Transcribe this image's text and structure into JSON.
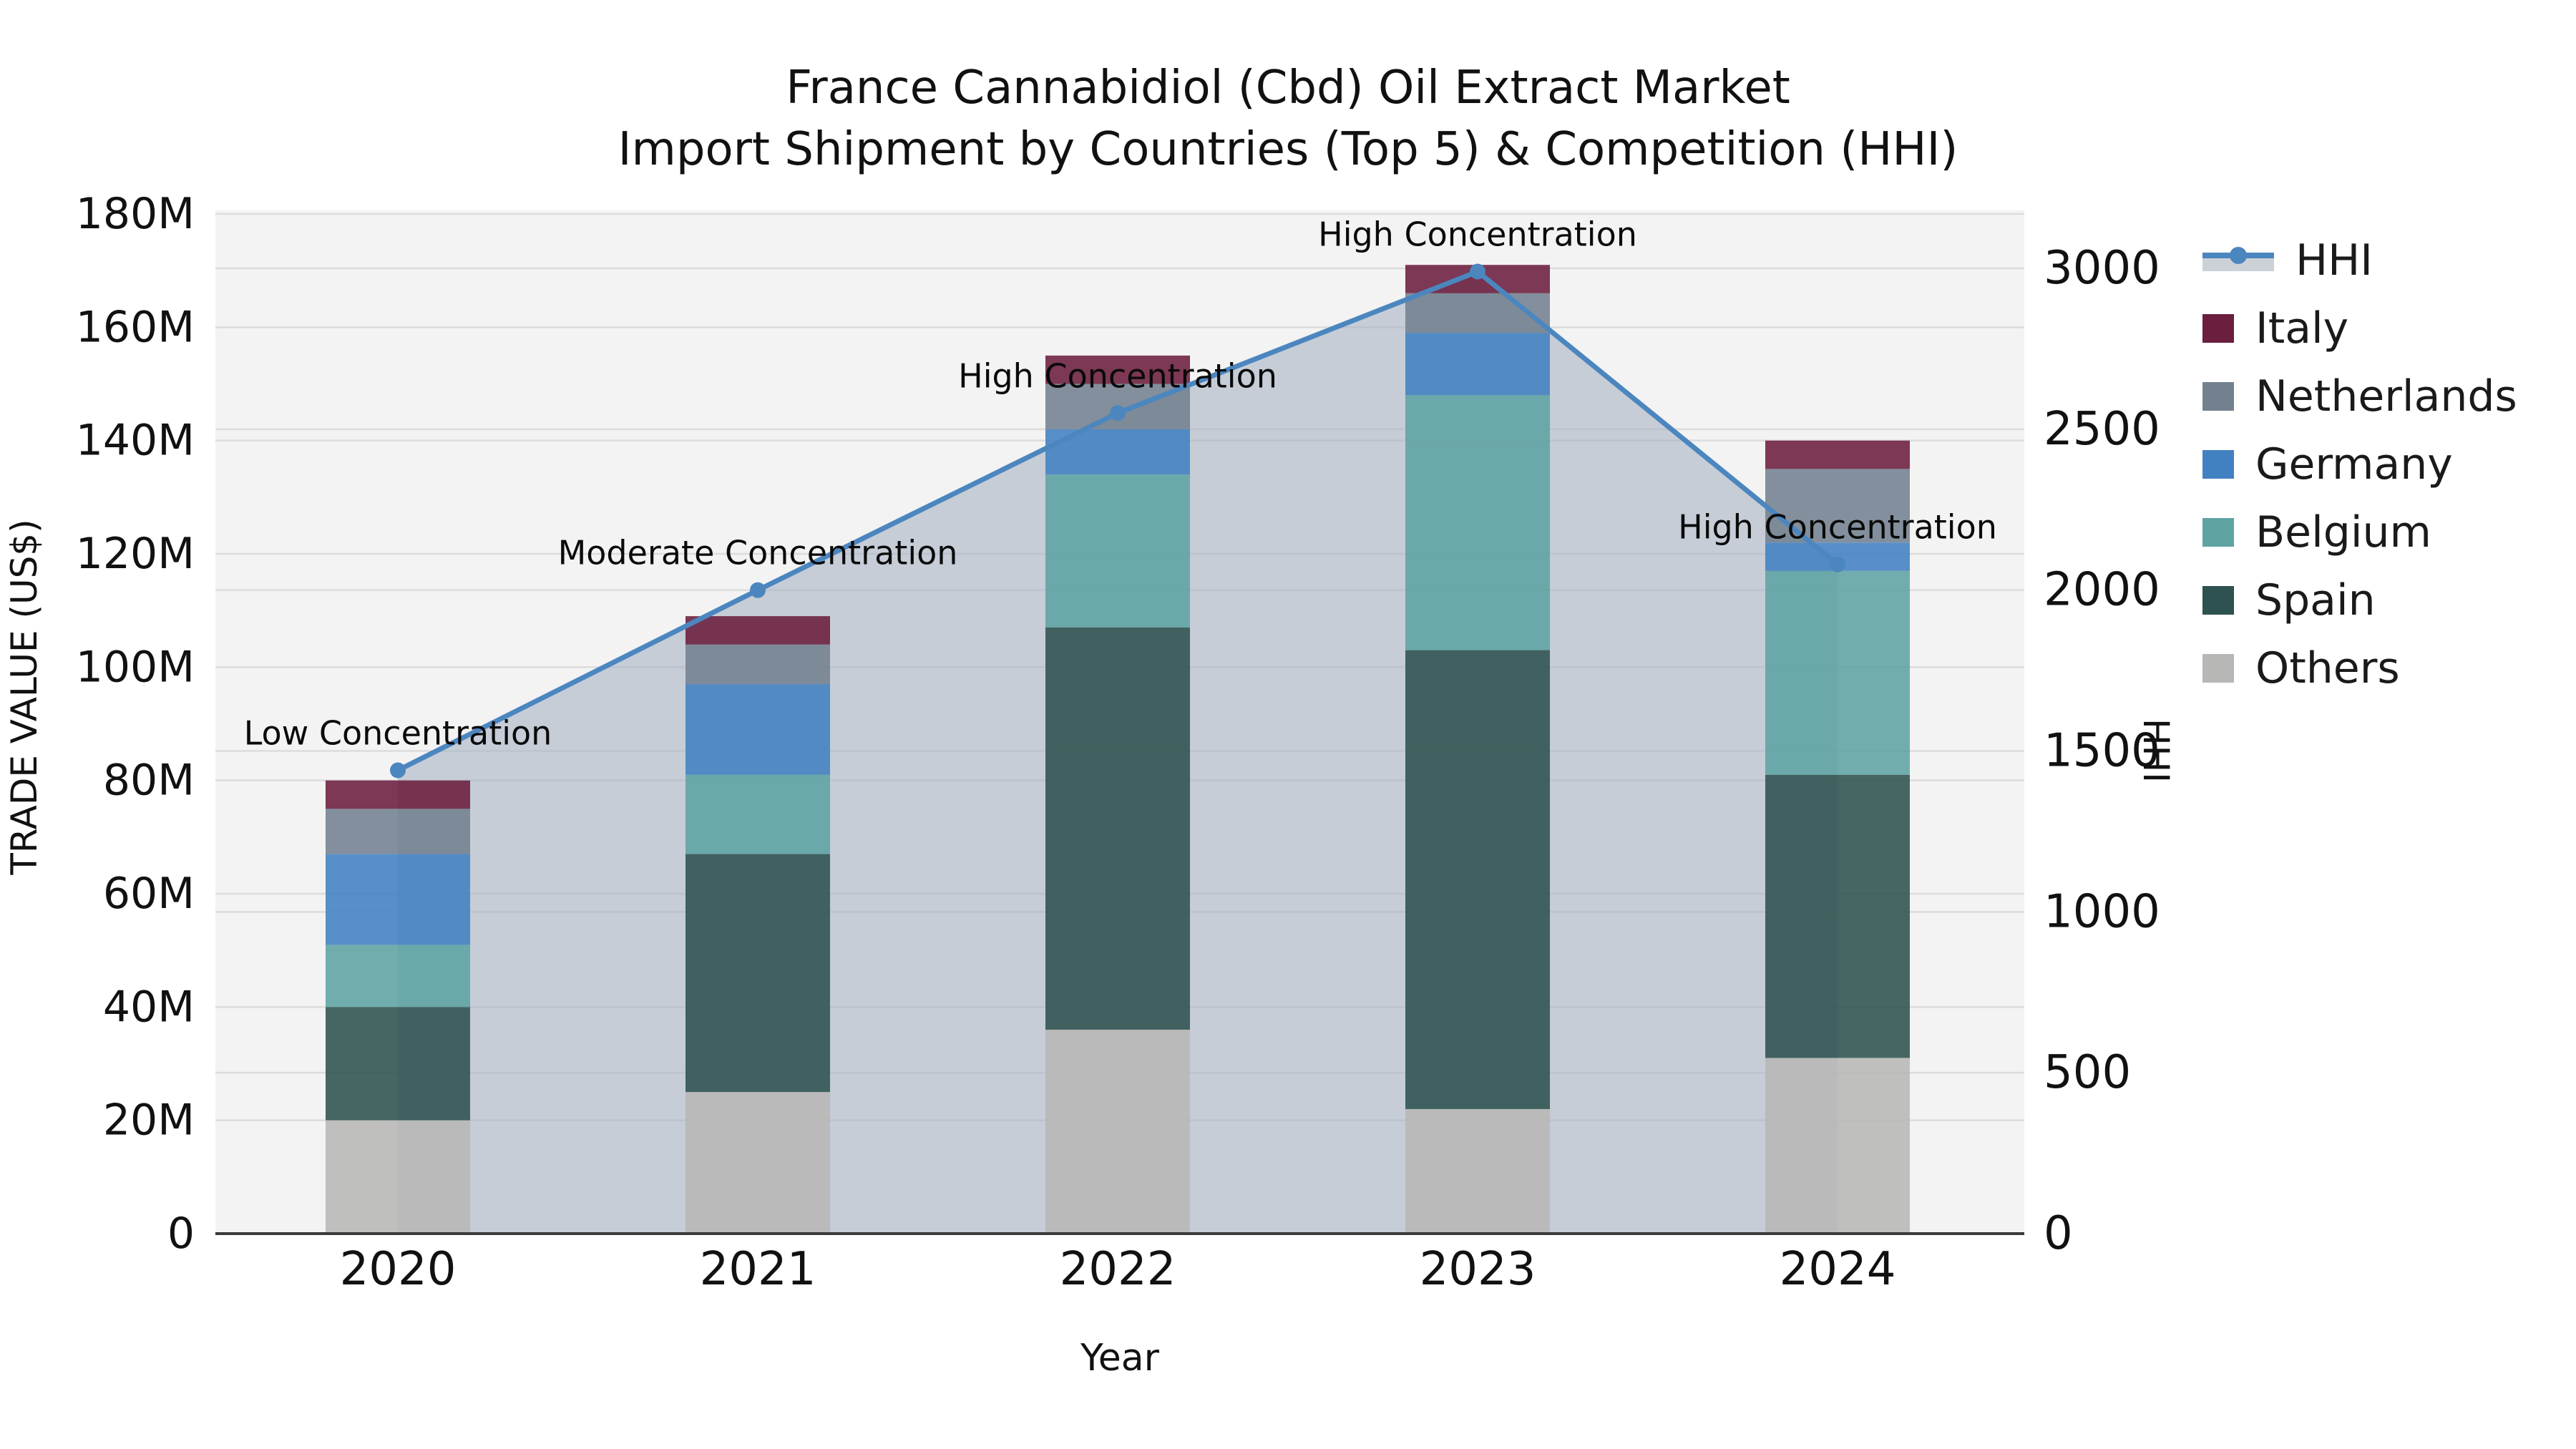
{
  "title": {
    "line1": "France Cannabidiol (Cbd) Oil Extract Market",
    "line2": "Import Shipment by Countries (Top 5) & Competition (HHI)"
  },
  "axis_titles": {
    "left": "TRADE VALUE (US$)",
    "bottom": "Year",
    "right": "HHI"
  },
  "legend": {
    "items": [
      {
        "label": "HHI",
        "kind": "line-marker",
        "color": "#4C86BF",
        "band_color": "#CCD1D8"
      },
      {
        "label": "Italy",
        "kind": "swatch",
        "color": "#6B1E3E"
      },
      {
        "label": "Netherlands",
        "kind": "swatch",
        "color": "#73818F"
      },
      {
        "label": "Germany",
        "kind": "swatch",
        "color": "#4281C1"
      },
      {
        "label": "Belgium",
        "kind": "swatch",
        "color": "#5FA3A3"
      },
      {
        "label": "Spain",
        "kind": "swatch",
        "color": "#2E524F"
      },
      {
        "label": "Others",
        "kind": "swatch",
        "color": "#B7B7B5"
      }
    ]
  },
  "chart_data": {
    "type": "bar",
    "subtype": "stacked-bar-with-line",
    "title": "France Cannabidiol (Cbd) Oil Extract Market Import Shipment by Countries (Top 5) & Competition (HHI)",
    "categories": [
      "2020",
      "2021",
      "2022",
      "2023",
      "2024"
    ],
    "unit": "US$ millions",
    "series": [
      {
        "name": "Others",
        "color": "#B7B7B5",
        "values": [
          20,
          25,
          36,
          22,
          31
        ]
      },
      {
        "name": "Spain",
        "color": "#2E524F",
        "values": [
          20,
          42,
          71,
          81,
          50
        ]
      },
      {
        "name": "Belgium",
        "color": "#5FA3A3",
        "values": [
          11,
          14,
          27,
          45,
          36
        ]
      },
      {
        "name": "Germany",
        "color": "#4281C1",
        "values": [
          16,
          16,
          8,
          11,
          5
        ]
      },
      {
        "name": "Netherlands",
        "color": "#73818F",
        "values": [
          8,
          7,
          8,
          7,
          13
        ]
      },
      {
        "name": "Italy",
        "color": "#6B1E3E",
        "values": [
          5,
          5,
          5,
          5,
          5
        ]
      }
    ],
    "bar_totals_millions": [
      80,
      109,
      155,
      171,
      140
    ],
    "line": {
      "name": "HHI",
      "color": "#4C86BF",
      "area_fill": "rgba(165,178,195,0.58)",
      "values": [
        1440,
        2000,
        2550,
        2990,
        2080
      ]
    },
    "annotations": [
      {
        "category": "2020",
        "text": "Low Concentration"
      },
      {
        "category": "2021",
        "text": "Moderate Concentration"
      },
      {
        "category": "2022",
        "text": "High Concentration"
      },
      {
        "category": "2023",
        "text": "High Concentration"
      },
      {
        "category": "2024",
        "text": "High Concentration"
      }
    ],
    "y_left": {
      "label": "TRADE VALUE (US$)",
      "min": 0,
      "max_millions": 180,
      "tick_step_millions": 20,
      "tick_labels": [
        "0",
        "20M",
        "40M",
        "60M",
        "80M",
        "100M",
        "120M",
        "140M",
        "160M",
        "180M"
      ]
    },
    "y_right": {
      "label": "HHI",
      "min": 0,
      "max": 3000,
      "tick_step": 500,
      "tick_labels": [
        "0",
        "500",
        "1000",
        "1500",
        "2000",
        "2500",
        "3000"
      ]
    },
    "x": {
      "label": "Year"
    },
    "grid": true,
    "legend_position": "right",
    "plot_background": "#F3F3F3",
    "grid_color": "#DCDCDC"
  }
}
